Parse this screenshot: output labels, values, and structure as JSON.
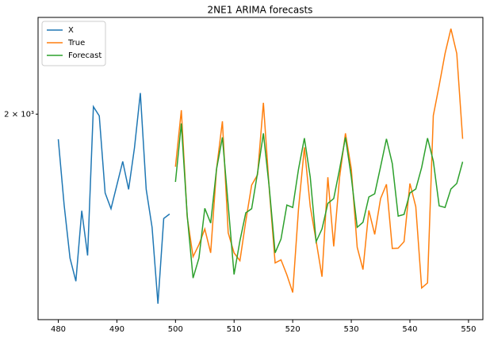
{
  "chart_data": {
    "type": "line",
    "title": "2NE1 ARIMA forecasts",
    "yscale": "log",
    "legend": "upper left",
    "xlim": [
      476.55,
      552.45
    ],
    "xticks": [
      480,
      490,
      500,
      510,
      520,
      530,
      540,
      550
    ],
    "ylim": [
      1500,
      2290
    ],
    "yticks": [
      {
        "value": 2000,
        "label": "2 × 10³"
      }
    ],
    "series": [
      {
        "name": "X",
        "color": "#1f77b4",
        "x": [
          480,
          481,
          482,
          483,
          484,
          485,
          486,
          487,
          488,
          489,
          490,
          491,
          492,
          493,
          494,
          495,
          496,
          497,
          498,
          499
        ],
        "values": [
          1931,
          1761,
          1635,
          1583,
          1747,
          1641,
          2021,
          1995,
          1791,
          1752,
          1811,
          1872,
          1800,
          1908,
          2060,
          1800,
          1707,
          1534,
          1728,
          1739
        ]
      },
      {
        "name": "True",
        "color": "#ff7f0e",
        "x": [
          500,
          501,
          502,
          503,
          504,
          505,
          506,
          507,
          508,
          509,
          510,
          511,
          512,
          513,
          514,
          515,
          516,
          517,
          518,
          519,
          520,
          521,
          522,
          523,
          524,
          525,
          526,
          527,
          528,
          529,
          530,
          531,
          532,
          533,
          534,
          535,
          536,
          537,
          538,
          539,
          540,
          541,
          542,
          543,
          544,
          545,
          546,
          547,
          548,
          549
        ],
        "values": [
          1858,
          2011,
          1732,
          1638,
          1666,
          1703,
          1647,
          1852,
          1980,
          1694,
          1647,
          1629,
          1722,
          1811,
          1837,
          2032,
          1801,
          1624,
          1631,
          1597,
          1558,
          1752,
          1909,
          1757,
          1675,
          1593,
          1831,
          1662,
          1831,
          1947,
          1852,
          1660,
          1609,
          1748,
          1690,
          1777,
          1813,
          1657,
          1658,
          1673,
          1815,
          1757,
          1568,
          1579,
          1996,
          2082,
          2177,
          2254,
          2177,
          1932
        ]
      },
      {
        "name": "Forecast",
        "color": "#2ca02c",
        "x": [
          500,
          501,
          502,
          503,
          504,
          505,
          506,
          507,
          508,
          509,
          510,
          511,
          512,
          513,
          514,
          515,
          516,
          517,
          518,
          519,
          520,
          521,
          522,
          523,
          524,
          525,
          526,
          527,
          528,
          529,
          530,
          531,
          532,
          533,
          534,
          535,
          536,
          537,
          538,
          539,
          540,
          541,
          542,
          543,
          544,
          545,
          546,
          547,
          548,
          549
        ],
        "values": [
          1819,
          1974,
          1736,
          1590,
          1635,
          1753,
          1717,
          1852,
          1936,
          1761,
          1598,
          1675,
          1742,
          1752,
          1842,
          1947,
          1805,
          1647,
          1679,
          1761,
          1755,
          1852,
          1934,
          1831,
          1673,
          1703,
          1765,
          1777,
          1852,
          1936,
          1831,
          1707,
          1719,
          1781,
          1789,
          1858,
          1932,
          1866,
          1734,
          1738,
          1791,
          1801,
          1856,
          1934,
          1873,
          1759,
          1755,
          1801,
          1815,
          1871
        ]
      }
    ]
  }
}
